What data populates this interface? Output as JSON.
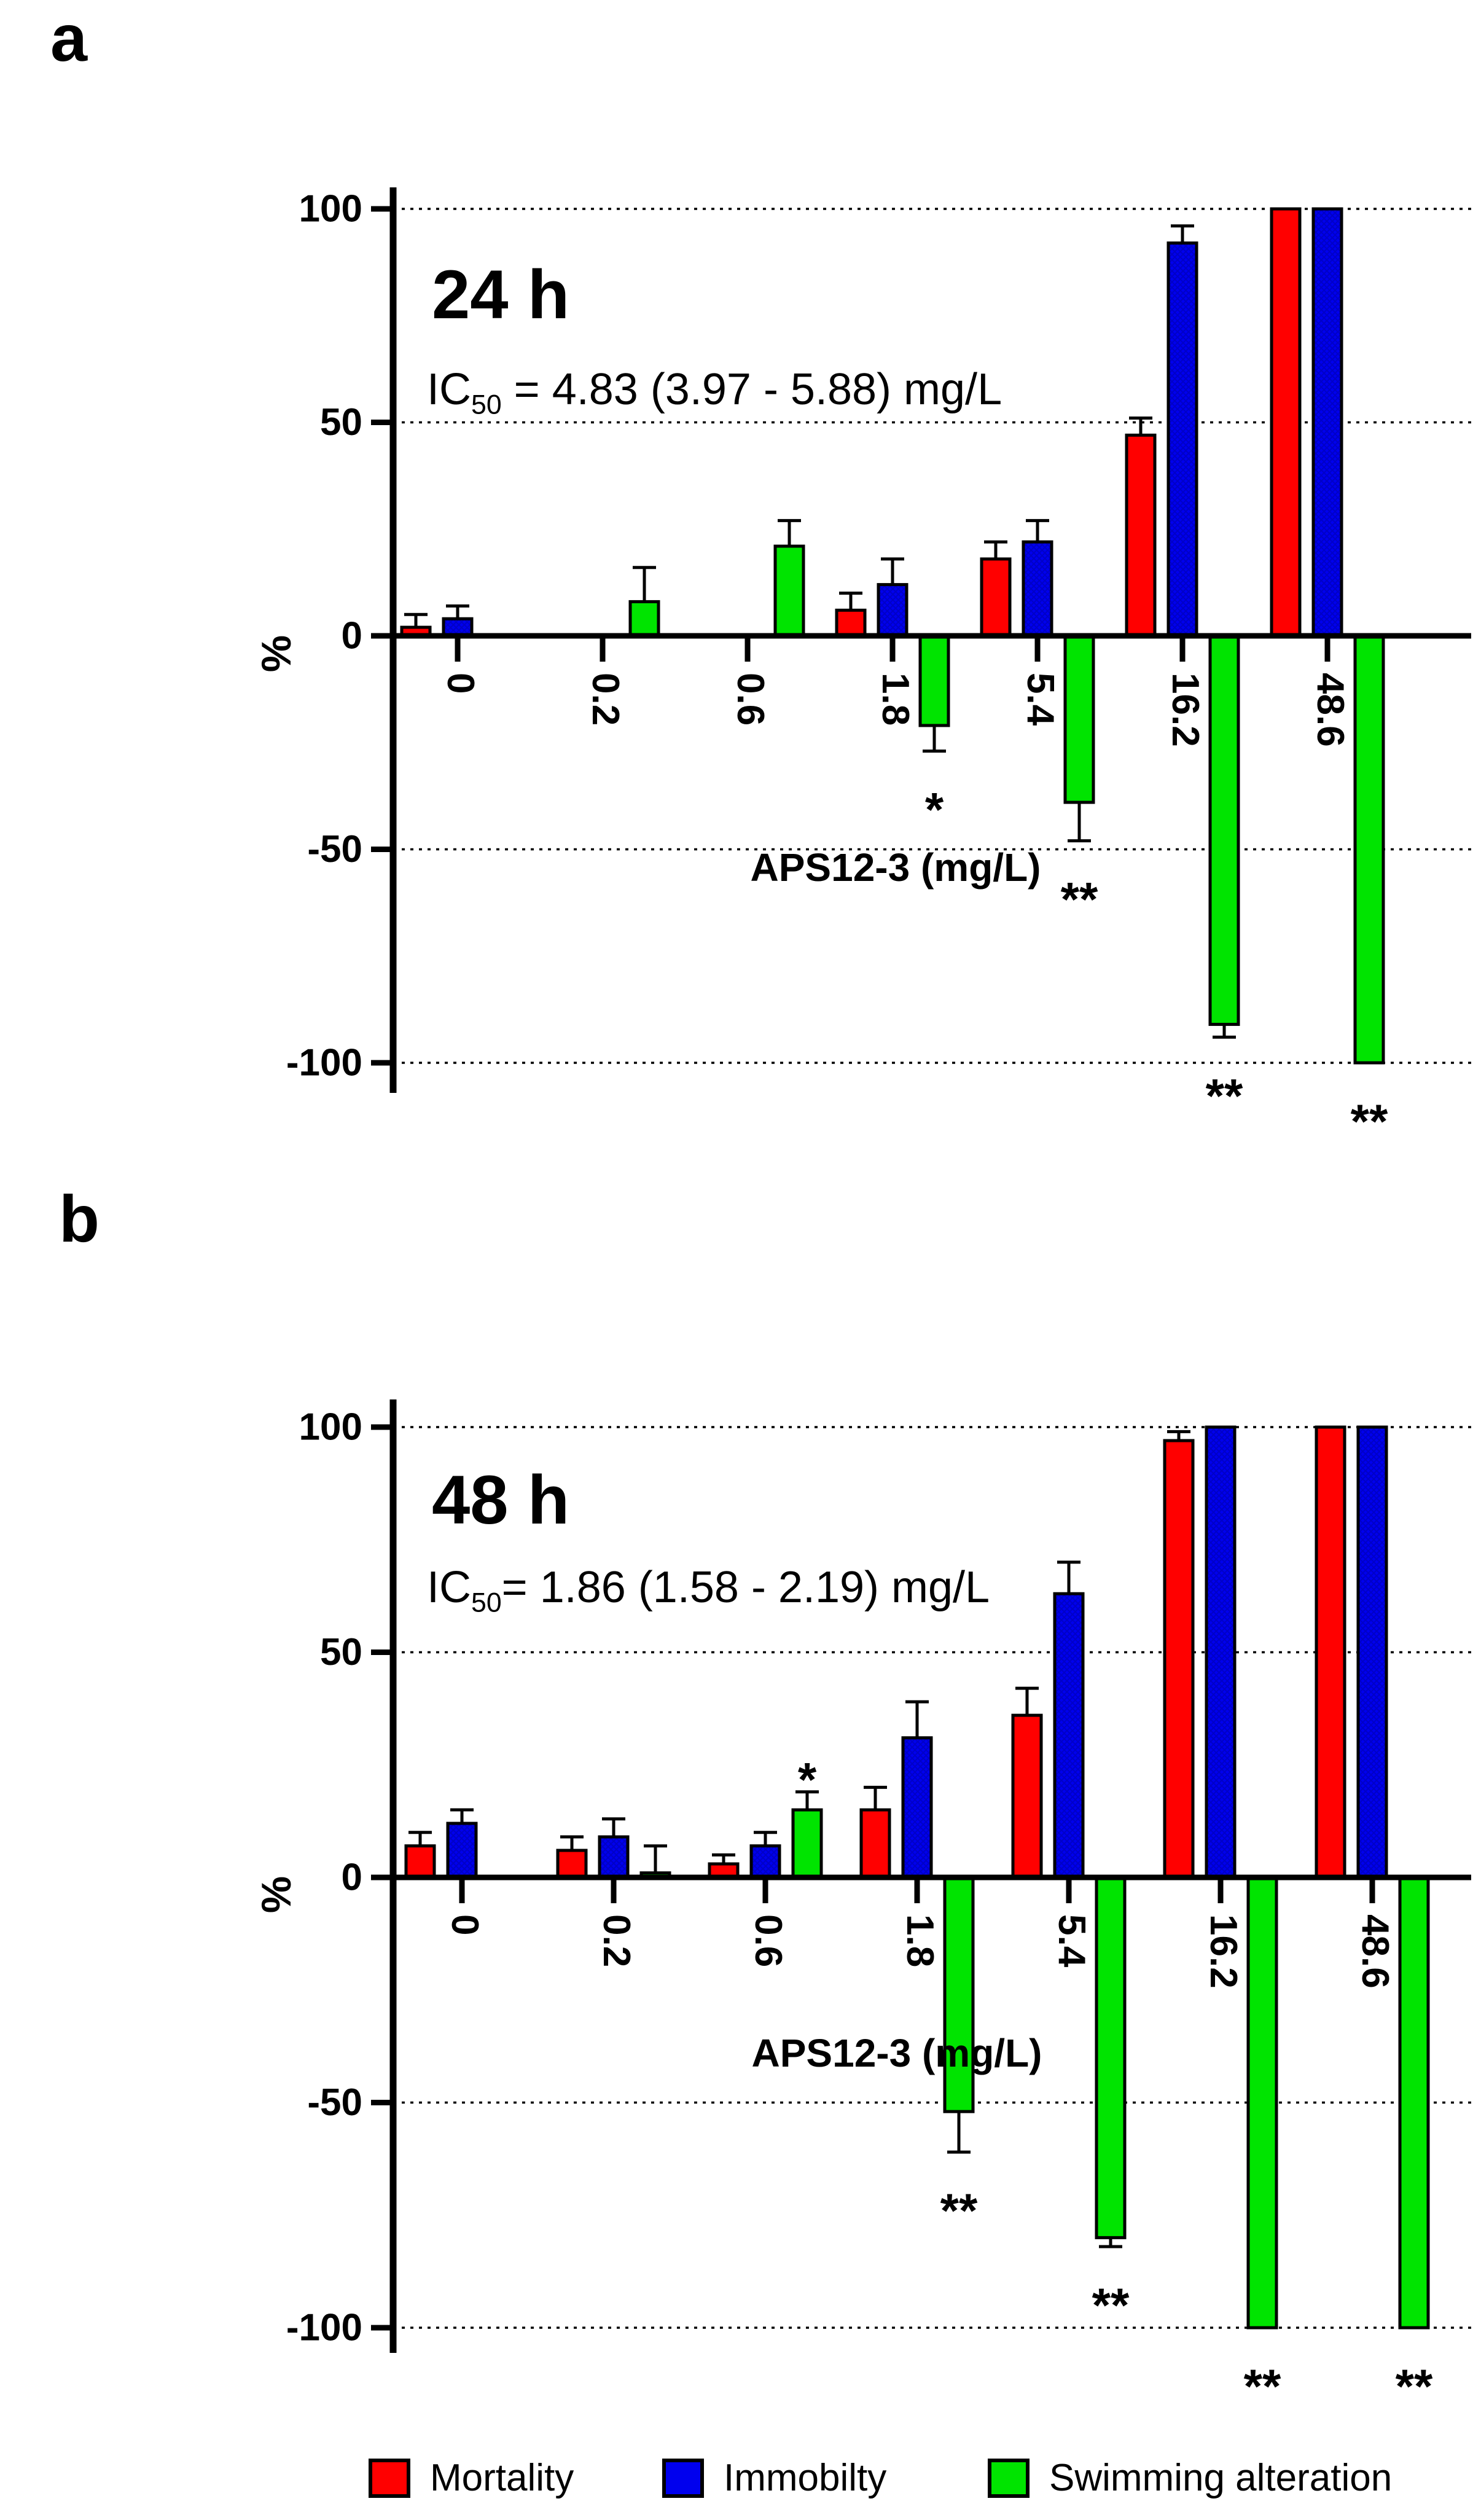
{
  "figure": {
    "background": "#ffffff",
    "text_color": "#000000"
  },
  "chart_data": [
    {
      "type": "bar",
      "panel_letter": "a",
      "title": "24 h",
      "ic50": {
        "prefix": "IC",
        "sub": "50",
        "rest": " = 4.83 (3.97 - 5.88) mg/L"
      },
      "xlabel": "APS12-3 (mg/L)",
      "ylabel": "%",
      "ylim": [
        -100,
        100
      ],
      "y_ticks": [
        100,
        50,
        0,
        -50,
        -100
      ],
      "gridlines": [
        100,
        50,
        -50,
        -100
      ],
      "grid_style": "dotted",
      "legend_position": "bottom-shared",
      "categories": [
        "0",
        "0.2",
        "0.6",
        "1.8",
        "5.4",
        "16.2",
        "48.6"
      ],
      "series": [
        {
          "name": "Mortality",
          "color": "#FF0000",
          "values": [
            2,
            0,
            0,
            6,
            18,
            47,
            100
          ],
          "errors": [
            3,
            0,
            0,
            4,
            4,
            4,
            0
          ]
        },
        {
          "name": "Immobilty",
          "color": "#0000EE",
          "values": [
            4,
            0,
            0,
            12,
            22,
            92,
            100
          ],
          "errors": [
            3,
            0,
            0,
            6,
            5,
            4,
            0
          ]
        },
        {
          "name": "Swimming alteration",
          "color": "#00E400",
          "values": [
            0,
            8,
            21,
            -21,
            -39,
            -91,
            -100
          ],
          "errors": [
            0,
            8,
            6,
            6,
            9,
            3,
            0
          ],
          "significance": [
            "",
            "",
            "",
            "*",
            "**",
            "**",
            "**"
          ]
        }
      ]
    },
    {
      "type": "bar",
      "panel_letter": "b",
      "title": "48 h",
      "ic50": {
        "prefix": "IC",
        "sub": "50",
        "rest": "= 1.86 (1.58 - 2.19) mg/L"
      },
      "xlabel": "APS12-3 (mg/L)",
      "ylabel": "%",
      "ylim": [
        -100,
        100
      ],
      "y_ticks": [
        100,
        50,
        0,
        -50,
        -100
      ],
      "gridlines": [
        100,
        50,
        -50,
        -100
      ],
      "grid_style": "dotted",
      "legend_position": "bottom-shared",
      "categories": [
        "0",
        "0.2",
        "0.6",
        "1.8",
        "5.4",
        "16.2",
        "48.6"
      ],
      "series": [
        {
          "name": "Mortality",
          "color": "#FF0000",
          "values": [
            7,
            6,
            3,
            15,
            36,
            97,
            100
          ],
          "errors": [
            3,
            3,
            2,
            5,
            6,
            2,
            0
          ]
        },
        {
          "name": "Immobilty",
          "color": "#0000EE",
          "values": [
            12,
            9,
            7,
            31,
            63,
            100,
            100
          ],
          "errors": [
            3,
            4,
            3,
            8,
            7,
            0,
            0
          ]
        },
        {
          "name": "Swimming alteration",
          "color": "#00E400",
          "values": [
            0,
            1,
            15,
            -52,
            -80,
            -100,
            -100
          ],
          "errors": [
            0,
            6,
            4,
            9,
            2,
            0,
            0
          ],
          "significance": [
            "",
            "",
            "*",
            "**",
            "**",
            "**",
            "**"
          ]
        }
      ]
    }
  ],
  "legend": {
    "items": [
      {
        "label": "Mortality",
        "color": "#FF0000"
      },
      {
        "label": "Immobilty",
        "color": "#0000EE"
      },
      {
        "label": "Swimming alteration",
        "color": "#00E400"
      }
    ]
  }
}
